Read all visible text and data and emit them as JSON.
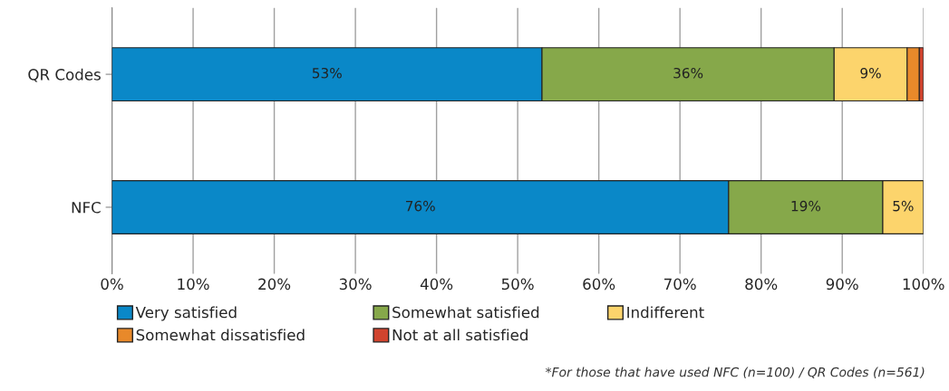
{
  "chart_data": {
    "type": "bar",
    "orientation": "horizontal",
    "stacked": true,
    "categories": [
      "QR Codes",
      "NFC"
    ],
    "series": [
      {
        "name": "Very satisfied",
        "color": "#0a88c8",
        "values": [
          53,
          76
        ],
        "value_labels": [
          "53%",
          "76%"
        ]
      },
      {
        "name": "Somewhat satisfied",
        "color": "#86a84a",
        "values": [
          36,
          19
        ],
        "value_labels": [
          "36%",
          "19%"
        ]
      },
      {
        "name": "Indifferent",
        "color": "#fcd46c",
        "values": [
          9,
          5
        ],
        "value_labels": [
          "9%",
          "5%"
        ]
      },
      {
        "name": "Somewhat dissatisfied",
        "color": "#e8892a",
        "values": [
          1.5,
          null
        ],
        "value_labels": [
          null,
          null
        ]
      },
      {
        "name": "Not at all satisfied",
        "color": "#d0432e",
        "values": [
          0.5,
          null
        ],
        "value_labels": [
          null,
          null
        ]
      }
    ],
    "xlim": [
      0,
      100
    ],
    "xticks": [
      {
        "value": 0,
        "label": "0%"
      },
      {
        "value": 10,
        "label": "10%"
      },
      {
        "value": 20,
        "label": "20%"
      },
      {
        "value": 30,
        "label": "30%"
      },
      {
        "value": 40,
        "label": "40%"
      },
      {
        "value": 50,
        "label": "50%"
      },
      {
        "value": 60,
        "label": "60%"
      },
      {
        "value": 70,
        "label": "70%"
      },
      {
        "value": 80,
        "label": "80%"
      },
      {
        "value": 90,
        "label": "90%"
      },
      {
        "value": 100,
        "label": "100%"
      }
    ],
    "grid": "x",
    "legend": "bottom",
    "annotations": [
      "*For those that have used NFC (n=100) / QR Codes (n=561)"
    ]
  }
}
